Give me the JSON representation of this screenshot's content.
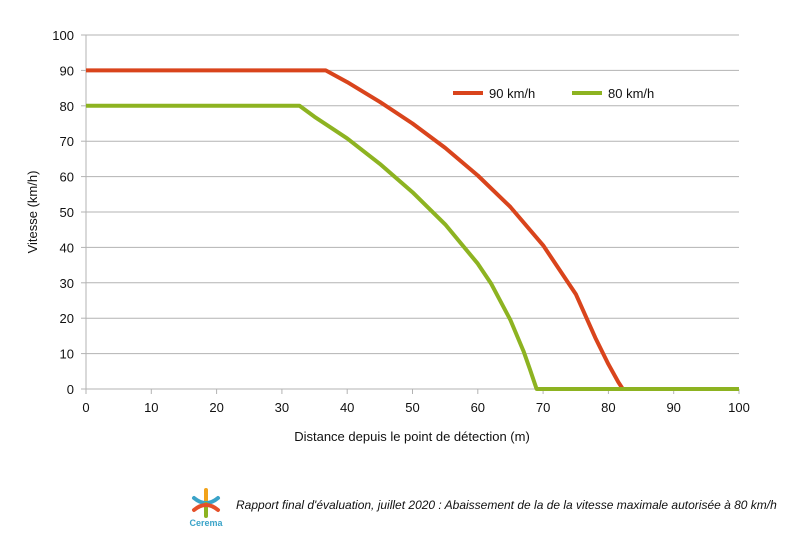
{
  "chart_data": {
    "type": "line",
    "xlabel": "Distance depuis le point de détection (m)",
    "ylabel": "Vitesse (km/h)",
    "xlim": [
      0,
      100
    ],
    "ylim": [
      0,
      100
    ],
    "xticks": [
      0,
      10,
      20,
      30,
      40,
      50,
      60,
      70,
      80,
      90,
      100
    ],
    "yticks": [
      0,
      10,
      20,
      30,
      40,
      50,
      60,
      70,
      80,
      90,
      100
    ],
    "grid": "horizontal",
    "legend_position": "top-right",
    "series": [
      {
        "name": "90 km/h",
        "color": "#d9441c",
        "x": [
          0,
          36.7,
          40,
          45,
          50,
          55,
          60,
          65,
          70,
          75,
          78,
          80,
          81.5,
          82.2,
          100
        ],
        "y": [
          90,
          90,
          86.7,
          81.1,
          75.0,
          68.1,
          60.3,
          51.4,
          40.6,
          26.8,
          14.5,
          7.0,
          2.0,
          0,
          0
        ]
      },
      {
        "name": "80 km/h",
        "color": "#8db321",
        "x": [
          0,
          32.7,
          35,
          40,
          45,
          50,
          55,
          60,
          62,
          65,
          67,
          68,
          69,
          100
        ],
        "y": [
          80,
          80,
          76.9,
          70.8,
          63.6,
          55.6,
          46.5,
          35.4,
          29.9,
          19.5,
          10.7,
          5.5,
          0,
          0
        ]
      }
    ]
  },
  "footer": {
    "logo_text": "Cerema",
    "caption": "Rapport final d'évaluation, juillet 2020 : Abaissement de la de la vitesse maximale autorisée à 80 km/h"
  }
}
